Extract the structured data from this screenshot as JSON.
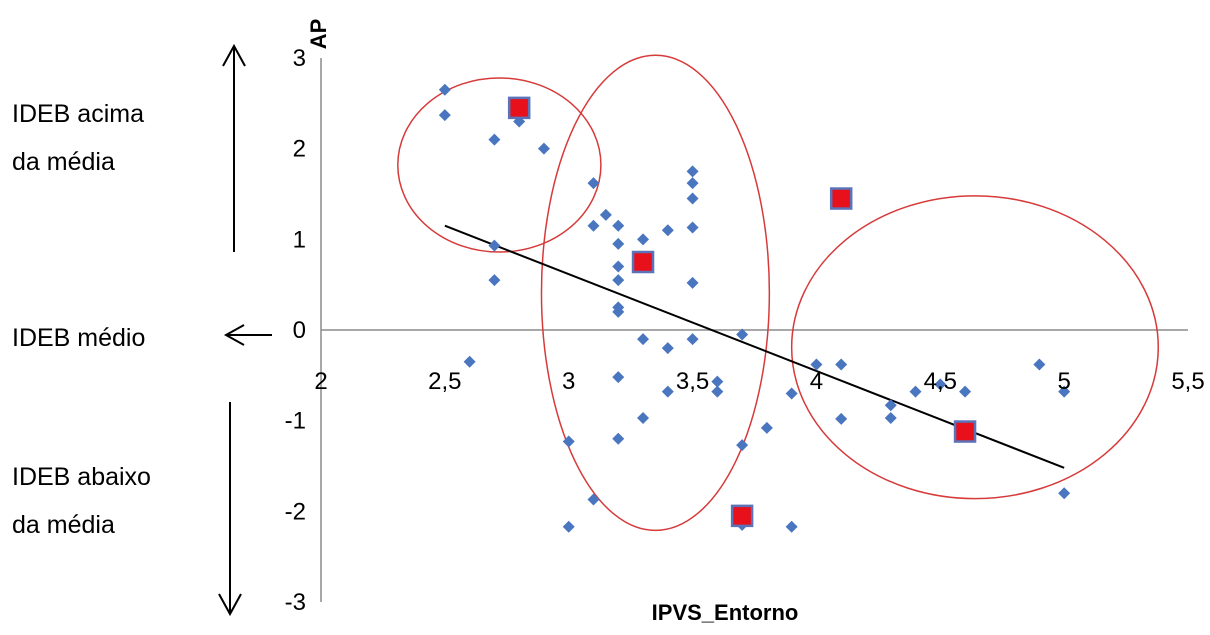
{
  "chart_data": {
    "type": "scatter",
    "xlabel": "IPVS_Entorno",
    "ylabel": "AP",
    "xlim": [
      2,
      5.5
    ],
    "ylim": [
      -3,
      3
    ],
    "x_ticks": [
      "2",
      "2,5",
      "3",
      "3,5",
      "4",
      "4,5",
      "5",
      "5,5"
    ],
    "y_ticks": [
      "3",
      "2",
      "1",
      "0",
      "-1",
      "-2",
      "-3"
    ],
    "grid": false,
    "side_labels": {
      "above_line1": "IDEB acima",
      "above_line2": "da média",
      "middle": "IDEB médio",
      "below_line1": "IDEB abaixo",
      "below_line2": "da média"
    },
    "colors": {
      "points": "#4a76c0",
      "highlight_fill": "#e8101a",
      "highlight_border": "#5b73b8",
      "ellipse": "#d63a3a",
      "trend": "#000000",
      "axis": "#8c8c8c"
    },
    "series": [
      {
        "marker": "diamond",
        "points": [
          [
            2.5,
            2.65
          ],
          [
            2.5,
            2.37
          ],
          [
            2.6,
            -0.35
          ],
          [
            2.7,
            2.1
          ],
          [
            2.7,
            0.93
          ],
          [
            2.7,
            0.55
          ],
          [
            2.8,
            2.3
          ],
          [
            2.9,
            2.0
          ],
          [
            3.0,
            -1.23
          ],
          [
            3.0,
            -2.17
          ],
          [
            3.1,
            1.62
          ],
          [
            3.1,
            1.15
          ],
          [
            3.1,
            -1.87
          ],
          [
            3.15,
            1.27
          ],
          [
            3.2,
            1.15
          ],
          [
            3.2,
            0.95
          ],
          [
            3.2,
            0.7
          ],
          [
            3.2,
            0.55
          ],
          [
            3.2,
            0.25
          ],
          [
            3.2,
            0.2
          ],
          [
            3.2,
            -0.52
          ],
          [
            3.2,
            -1.2
          ],
          [
            3.3,
            1.0
          ],
          [
            3.3,
            -0.1
          ],
          [
            3.3,
            -0.97
          ],
          [
            3.4,
            1.1
          ],
          [
            3.4,
            -0.2
          ],
          [
            3.4,
            -0.68
          ],
          [
            3.5,
            1.75
          ],
          [
            3.5,
            1.62
          ],
          [
            3.5,
            1.45
          ],
          [
            3.5,
            1.13
          ],
          [
            3.5,
            0.52
          ],
          [
            3.5,
            -0.1
          ],
          [
            3.6,
            -0.57
          ],
          [
            3.6,
            -0.68
          ],
          [
            3.7,
            -0.05
          ],
          [
            3.7,
            -1.27
          ],
          [
            3.7,
            -2.15
          ],
          [
            3.8,
            -1.08
          ],
          [
            3.9,
            -0.7
          ],
          [
            3.9,
            -2.17
          ],
          [
            4.0,
            -0.38
          ],
          [
            4.1,
            -0.38
          ],
          [
            4.1,
            -0.98
          ],
          [
            4.3,
            -0.83
          ],
          [
            4.3,
            -0.97
          ],
          [
            4.4,
            -0.68
          ],
          [
            4.5,
            -0.6
          ],
          [
            4.6,
            -0.68
          ],
          [
            4.9,
            -0.38
          ],
          [
            5.0,
            -0.68
          ],
          [
            5.0,
            -1.8
          ]
        ]
      },
      {
        "marker": "square",
        "points": [
          [
            2.8,
            2.45
          ],
          [
            3.3,
            0.75
          ],
          [
            4.1,
            1.45
          ],
          [
            4.6,
            -1.12
          ],
          [
            3.7,
            -2.05
          ]
        ]
      }
    ],
    "trendline": {
      "x": [
        2.5,
        5.0
      ],
      "y": [
        1.15,
        -1.52
      ]
    },
    "ellipses": [
      {
        "center": [
          2.72,
          1.82
        ],
        "radius": [
          0.41,
          0.96
        ]
      },
      {
        "center": [
          3.35,
          0.41
        ],
        "radius": [
          0.46,
          2.62
        ]
      },
      {
        "center": [
          4.64,
          -0.19
        ],
        "radius": [
          0.74,
          1.67
        ]
      }
    ]
  }
}
